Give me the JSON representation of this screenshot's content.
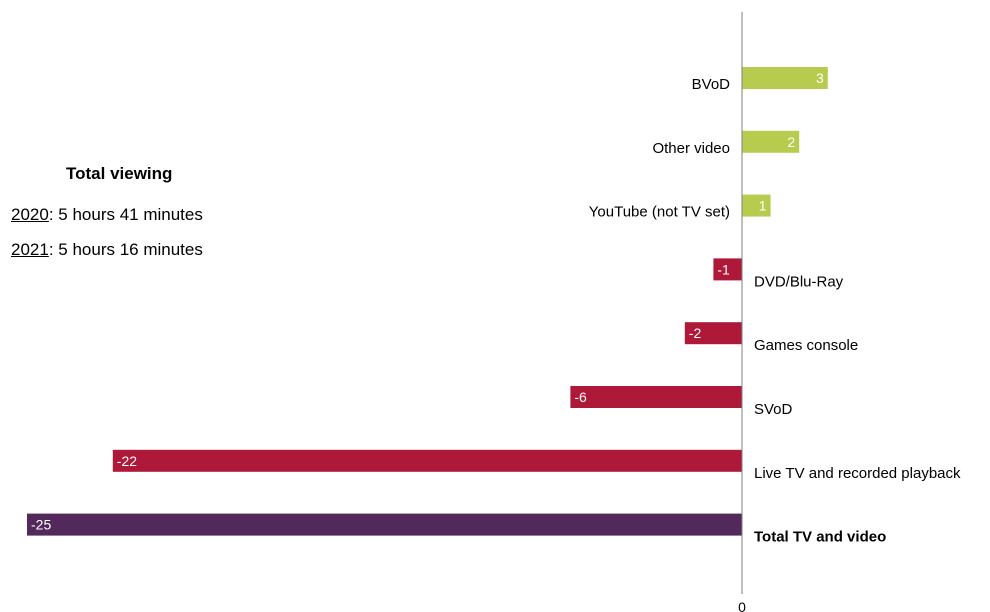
{
  "summary": {
    "title": "Total viewing",
    "lines": [
      {
        "year": "2020",
        "text": ": 5 hours 41 minutes"
      },
      {
        "year": "2021",
        "text": ": 5 hours 16 minutes"
      }
    ]
  },
  "chart_data": {
    "type": "bar",
    "orientation": "horizontal",
    "categories": [
      "BVoD",
      "Other video",
      "YouTube (not TV set)",
      "DVD/Blu-Ray",
      "Games console",
      "SVoD",
      "Live TV and recorded playback",
      "Total TV and video"
    ],
    "values": [
      3,
      2,
      1,
      -1,
      -2,
      -6,
      -22,
      -25
    ],
    "data_labels": [
      "3",
      "2",
      "1",
      "-1",
      "-2",
      "-6",
      "-22",
      "-25"
    ],
    "bold_categories": [
      "Total TV and video"
    ],
    "x_tick_labels": [
      "0"
    ],
    "xlim": [
      -25,
      3
    ],
    "grid": false,
    "colors": {
      "positive": "#b7cc4f",
      "negative": "#ae1839",
      "total": "#53285a",
      "axis": "#7f7f7f",
      "label_text": "#ffffff"
    }
  }
}
